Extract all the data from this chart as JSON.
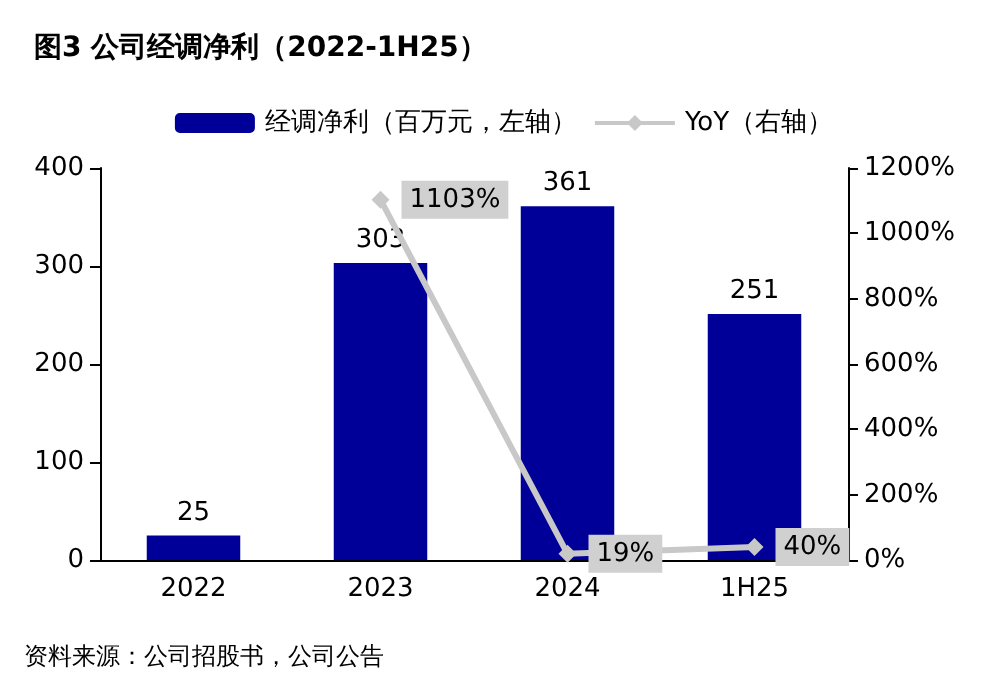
{
  "chart_data": {
    "type": "bar",
    "title": "图3 公司经调净利（2022-1H25）",
    "categories": [
      "2022",
      "2023",
      "2024",
      "1H25"
    ],
    "series": [
      {
        "name": "经调净利（百万元，左轴）",
        "color": "#000099",
        "values": [
          25,
          303,
          361,
          251
        ]
      },
      {
        "name": "YoY（右轴）",
        "type": "line",
        "axis": "y2",
        "color": "#c8c8c8",
        "marker": "diamond",
        "values": [
          null,
          1103,
          19,
          40
        ],
        "value_labels": [
          null,
          "1103%",
          "19%",
          "40%"
        ]
      }
    ],
    "ylim": [
      0,
      400
    ],
    "yticks": [
      0,
      100,
      200,
      300,
      400
    ],
    "y2lim": [
      0,
      1200
    ],
    "y2ticks": [
      {
        "value": 0,
        "label": "0%"
      },
      {
        "value": 200,
        "label": "200%"
      },
      {
        "value": 400,
        "label": "400%"
      },
      {
        "value": 600,
        "label": "600%"
      },
      {
        "value": 800,
        "label": "800%"
      },
      {
        "value": 1000,
        "label": "1000%"
      },
      {
        "value": 1200,
        "label": "1200%"
      }
    ],
    "data_labels": true,
    "grid": false,
    "legend": "top",
    "annotations": [
      "资料来源：公司招股书，公司公告"
    ]
  }
}
